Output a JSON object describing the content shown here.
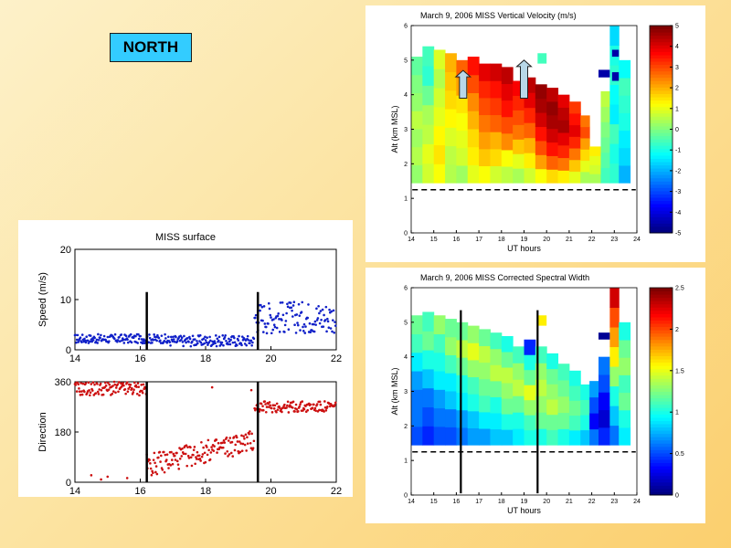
{
  "slide": {
    "north_label": "NORTH"
  },
  "chart_data": [
    {
      "type": "scatter",
      "title": "MISS surface",
      "subplots": [
        {
          "ylabel": "Speed (m/s)",
          "color": "#1020c8",
          "xlim": [
            14,
            22
          ],
          "ylim": [
            0,
            20
          ],
          "xticks": [
            14,
            16,
            18,
            20,
            22
          ],
          "yticks": [
            0,
            10,
            20
          ],
          "segments": [
            {
              "x0": 14.0,
              "x1": 16.8,
              "base": 2.2,
              "amp": 0.9
            },
            {
              "x0": 16.8,
              "x1": 19.5,
              "base": 1.8,
              "amp": 1.1
            },
            {
              "x0": 19.5,
              "x1": 22.0,
              "base": 6.5,
              "amp": 3.2
            }
          ],
          "vlines": [
            16.2,
            19.6
          ]
        },
        {
          "ylabel": "Direction",
          "color": "#cc1010",
          "xlim": [
            14,
            22
          ],
          "ylim": [
            0,
            360
          ],
          "xticks": [
            14,
            16,
            18,
            20,
            22
          ],
          "yticks": [
            0,
            180,
            360
          ],
          "segments": [
            {
              "x0": 14.0,
              "x1": 16.2,
              "base": 335,
              "amp": 25
            },
            {
              "x0": 16.2,
              "x1": 19.5,
              "base": 60,
              "amp": 40,
              "trend": 90
            },
            {
              "x0": 19.5,
              "x1": 22.0,
              "base": 270,
              "amp": 20
            }
          ],
          "extra_points": [
            [
              14.5,
              25
            ],
            [
              15.0,
              20
            ],
            [
              14.8,
              10
            ],
            [
              15.6,
              15
            ],
            [
              18.2,
              340
            ],
            [
              19.4,
              330
            ]
          ],
          "vlines": [
            16.2,
            19.6
          ]
        }
      ]
    },
    {
      "type": "heatmap",
      "title": "March 9, 2006    MISS Vertical Velocity (m/s)",
      "xlabel": "UT hours",
      "ylabel": "Alt (km MSL)",
      "xlim": [
        14,
        24
      ],
      "ylim": [
        0,
        6
      ],
      "xticks": [
        14,
        15,
        16,
        17,
        18,
        19,
        20,
        21,
        22,
        23,
        24
      ],
      "yticks": [
        0,
        1,
        2,
        3,
        4,
        5,
        6
      ],
      "clim": [
        -5,
        5
      ],
      "colorbar_ticks": [
        -5,
        -4,
        -3,
        -2,
        -1,
        0,
        1,
        2,
        3,
        4,
        5
      ],
      "ground_level_km": 1.25,
      "columns": [
        {
          "x": 14.0,
          "w": 0.5,
          "top": 5.1,
          "v": [
            0.2,
            0.5,
            0.3,
            0.6,
            0.2,
            0.0,
            -0.3
          ]
        },
        {
          "x": 14.5,
          "w": 0.5,
          "top": 5.4,
          "v": [
            0.8,
            1.0,
            0.6,
            0.4,
            -0.2,
            -0.8,
            -0.6
          ]
        },
        {
          "x": 15.0,
          "w": 0.5,
          "top": 5.3,
          "v": [
            1.2,
            1.5,
            1.3,
            1.0,
            0.8,
            0.5,
            0.9
          ]
        },
        {
          "x": 15.5,
          "w": 0.5,
          "top": 5.2,
          "v": [
            0.5,
            0.6,
            0.9,
            1.3,
            1.6,
            1.8,
            2.0
          ]
        },
        {
          "x": 16.0,
          "w": 0.5,
          "top": 5.0,
          "v": [
            0.3,
            0.8,
            1.0,
            1.2,
            1.5,
            2.2,
            2.8
          ]
        },
        {
          "x": 16.5,
          "w": 0.5,
          "top": 5.1,
          "v": [
            1.0,
            1.4,
            1.6,
            2.0,
            2.4,
            3.0,
            3.6
          ]
        },
        {
          "x": 17.0,
          "w": 0.5,
          "top": 4.9,
          "v": [
            1.2,
            1.8,
            2.2,
            2.6,
            3.0,
            3.4,
            4.0
          ]
        },
        {
          "x": 17.5,
          "w": 0.5,
          "top": 4.9,
          "v": [
            0.8,
            1.6,
            2.0,
            2.8,
            3.2,
            3.6,
            4.2
          ]
        },
        {
          "x": 18.0,
          "w": 0.5,
          "top": 4.8,
          "v": [
            0.6,
            1.2,
            2.4,
            3.0,
            3.6,
            4.0,
            4.4
          ]
        },
        {
          "x": 18.5,
          "w": 0.5,
          "top": 4.4,
          "v": [
            0.4,
            1.0,
            1.8,
            2.6,
            3.0,
            3.4,
            3.8
          ]
        },
        {
          "x": 19.0,
          "w": 0.5,
          "top": 4.5,
          "v": [
            0.8,
            1.4,
            2.0,
            2.8,
            3.4,
            4.0,
            4.4
          ]
        },
        {
          "x": 19.5,
          "w": 0.5,
          "top": 4.3,
          "v": [
            1.2,
            2.2,
            3.0,
            3.6,
            4.2,
            4.6,
            4.8
          ]
        },
        {
          "x": 20.0,
          "w": 0.5,
          "top": 4.2,
          "v": [
            1.6,
            2.8,
            3.6,
            4.2,
            4.6,
            4.8,
            4.4
          ]
        },
        {
          "x": 20.5,
          "w": 0.5,
          "top": 4.0,
          "v": [
            1.4,
            2.6,
            3.4,
            4.0,
            4.6,
            4.4,
            4.0
          ]
        },
        {
          "x": 21.0,
          "w": 0.5,
          "top": 3.8,
          "v": [
            1.0,
            1.8,
            2.6,
            3.4,
            4.0,
            3.6,
            3.2
          ]
        },
        {
          "x": 21.5,
          "w": 0.4,
          "top": 3.4,
          "v": [
            0.4,
            1.0,
            1.6,
            2.2,
            3.0,
            2.6
          ]
        },
        {
          "x": 21.9,
          "w": 0.5,
          "top": 2.5,
          "v": [
            0.4,
            0.8,
            1.0,
            1.4
          ]
        },
        {
          "x": 22.4,
          "w": 0.4,
          "top": 4.1,
          "v": [
            -0.6,
            -0.4,
            -0.2,
            0.0,
            0.3,
            0.6
          ]
        },
        {
          "x": 22.8,
          "w": 0.4,
          "top": 6.0,
          "v": [
            -0.8,
            -1.0,
            -0.6,
            -1.4,
            -1.2,
            -0.8,
            -1.0,
            -1.6
          ]
        },
        {
          "x": 23.2,
          "w": 0.5,
          "top": 5.0,
          "v": [
            -2.0,
            -1.6,
            -1.4,
            -1.0,
            -0.8,
            -0.6,
            -1.2
          ]
        }
      ],
      "patches": [
        {
          "x": 22.3,
          "y": 4.5,
          "w": 0.5,
          "h": 0.22,
          "v": -4.6
        },
        {
          "x": 22.9,
          "y": 4.4,
          "w": 0.3,
          "h": 0.25,
          "v": -4.6
        },
        {
          "x": 22.9,
          "y": 5.1,
          "w": 0.3,
          "h": 0.2,
          "v": -4.6
        },
        {
          "x": 19.6,
          "y": 4.9,
          "w": 0.4,
          "h": 0.3,
          "v": -0.6
        }
      ],
      "arrows": [
        {
          "x": 16.3,
          "y1": 3.9,
          "y2": 4.7
        },
        {
          "x": 19.0,
          "y1": 3.9,
          "y2": 5.0
        }
      ]
    },
    {
      "type": "heatmap",
      "title": "March 9, 2006    MISS Corrected Spectral Width",
      "xlabel": "UT hours",
      "ylabel": "Alt (km MSL)",
      "xlim": [
        14,
        24
      ],
      "ylim": [
        0,
        6
      ],
      "xticks": [
        14,
        15,
        16,
        17,
        18,
        19,
        20,
        21,
        22,
        23,
        24
      ],
      "yticks": [
        0,
        1,
        2,
        3,
        4,
        5,
        6
      ],
      "clim": [
        0,
        2.5
      ],
      "colorbar_ticks": [
        0,
        0.5,
        1,
        1.5,
        2,
        2.5
      ],
      "ground_level_km": 1.25,
      "columns": [
        {
          "x": 14.0,
          "w": 0.5,
          "top": 5.2,
          "v": [
            0.5,
            0.6,
            0.6,
            0.7,
            0.9,
            1.1,
            1.2
          ]
        },
        {
          "x": 14.5,
          "w": 0.5,
          "top": 5.3,
          "v": [
            0.4,
            0.5,
            0.6,
            0.8,
            1.0,
            1.2,
            1.1
          ]
        },
        {
          "x": 15.0,
          "w": 0.5,
          "top": 5.2,
          "v": [
            0.5,
            0.6,
            0.7,
            0.9,
            1.0,
            1.1,
            1.3
          ]
        },
        {
          "x": 15.5,
          "w": 0.5,
          "top": 5.1,
          "v": [
            0.5,
            0.6,
            0.8,
            0.9,
            1.1,
            1.3,
            1.2
          ]
        },
        {
          "x": 16.0,
          "w": 0.5,
          "top": 5.0,
          "v": [
            0.6,
            0.7,
            0.9,
            1.0,
            1.2,
            1.4,
            1.2
          ]
        },
        {
          "x": 16.5,
          "w": 0.5,
          "top": 4.9,
          "v": [
            0.7,
            0.8,
            1.0,
            1.1,
            1.3,
            1.5,
            1.3
          ]
        },
        {
          "x": 17.0,
          "w": 0.5,
          "top": 4.8,
          "v": [
            0.7,
            0.9,
            1.1,
            1.2,
            1.3,
            1.4,
            1.2
          ]
        },
        {
          "x": 17.5,
          "w": 0.5,
          "top": 4.7,
          "v": [
            0.8,
            0.9,
            1.0,
            1.2,
            1.4,
            1.3,
            1.1
          ]
        },
        {
          "x": 18.0,
          "w": 0.5,
          "top": 4.6,
          "v": [
            0.8,
            1.0,
            1.2,
            1.3,
            1.4,
            1.2,
            1.0
          ]
        },
        {
          "x": 18.5,
          "w": 0.5,
          "top": 4.3,
          "v": [
            0.9,
            1.0,
            1.2,
            1.4,
            1.3,
            1.1
          ]
        },
        {
          "x": 19.0,
          "w": 0.5,
          "top": 4.5,
          "v": [
            1.0,
            1.1,
            1.3,
            1.5,
            1.2,
            1.0,
            0.4
          ]
        },
        {
          "x": 19.5,
          "w": 0.5,
          "top": 4.3,
          "v": [
            1.0,
            1.2,
            1.3,
            1.4,
            1.3,
            1.1
          ]
        },
        {
          "x": 20.0,
          "w": 0.5,
          "top": 4.1,
          "v": [
            1.1,
            1.2,
            1.4,
            1.3,
            1.2,
            1.0
          ]
        },
        {
          "x": 20.5,
          "w": 0.5,
          "top": 3.8,
          "v": [
            1.0,
            1.2,
            1.3,
            1.2,
            1.1
          ]
        },
        {
          "x": 21.0,
          "w": 0.5,
          "top": 3.6,
          "v": [
            0.9,
            1.1,
            1.2,
            1.1,
            1.0
          ]
        },
        {
          "x": 21.5,
          "w": 0.4,
          "top": 3.2,
          "v": [
            0.8,
            1.0,
            1.1,
            1.0
          ]
        },
        {
          "x": 21.9,
          "w": 0.4,
          "top": 3.3,
          "v": [
            0.6,
            0.3,
            0.5,
            0.7
          ]
        },
        {
          "x": 22.3,
          "w": 0.5,
          "top": 4.0,
          "v": [
            0.4,
            0.2,
            0.3,
            0.5,
            0.6
          ]
        },
        {
          "x": 22.8,
          "w": 0.4,
          "top": 6.0,
          "v": [
            0.6,
            0.8,
            1.0,
            1.3,
            1.6,
            1.8,
            2.0,
            2.3
          ]
        },
        {
          "x": 23.2,
          "w": 0.5,
          "top": 5.0,
          "v": [
            0.9,
            1.0,
            1.2,
            1.1,
            1.3,
            1.2,
            1.0
          ]
        }
      ],
      "patches": [
        {
          "x": 22.3,
          "y": 4.5,
          "w": 0.5,
          "h": 0.2,
          "v": 0.05
        },
        {
          "x": 19.6,
          "y": 4.9,
          "w": 0.4,
          "h": 0.3,
          "v": 1.6
        }
      ],
      "vlines": [
        16.2,
        19.6
      ]
    }
  ]
}
